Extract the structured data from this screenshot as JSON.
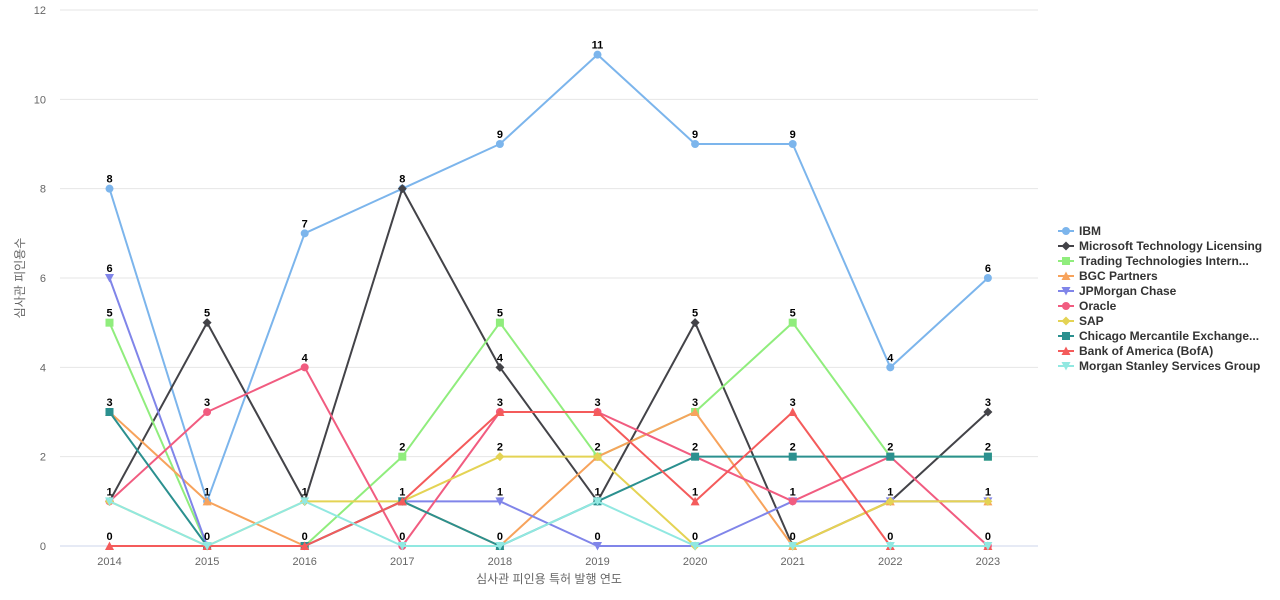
{
  "chart_data": {
    "type": "line",
    "title": "",
    "xlabel": "심사관 피인용 특허 발행 연도",
    "ylabel": "심사관 피인용수",
    "categories": [
      "2014",
      "2015",
      "2016",
      "2017",
      "2018",
      "2019",
      "2020",
      "2021",
      "2022",
      "2023"
    ],
    "ylim": [
      0,
      12
    ],
    "yticks": [
      0,
      2,
      4,
      6,
      8,
      10,
      12
    ],
    "grid": true,
    "legend_position": "right",
    "series": [
      {
        "name": "IBM",
        "color": "#7cb5ec",
        "marker": "circle",
        "values": [
          8,
          1,
          7,
          8,
          9,
          11,
          9,
          9,
          4,
          6
        ]
      },
      {
        "name": "Microsoft Technology Licensing",
        "color": "#434348",
        "marker": "diamond",
        "values": [
          1,
          5,
          1,
          8,
          4,
          1,
          5,
          0,
          1,
          3
        ]
      },
      {
        "name": "Trading Technologies Intern...",
        "color": "#90ed7d",
        "marker": "square",
        "values": [
          5,
          0,
          0,
          2,
          5,
          2,
          3,
          5,
          2,
          2
        ]
      },
      {
        "name": "BGC Partners",
        "color": "#f7a35c",
        "marker": "triangle",
        "values": [
          3,
          1,
          0,
          1,
          0,
          2,
          3,
          0,
          1,
          1
        ]
      },
      {
        "name": "JPMorgan Chase",
        "color": "#8085e9",
        "marker": "triangle-down",
        "values": [
          6,
          0,
          0,
          1,
          1,
          0,
          0,
          1,
          1,
          1
        ]
      },
      {
        "name": "Oracle",
        "color": "#f15c80",
        "marker": "circle",
        "values": [
          1,
          3,
          4,
          0,
          3,
          3,
          2,
          1,
          2,
          0
        ]
      },
      {
        "name": "SAP",
        "color": "#e4d354",
        "marker": "diamond",
        "values": [
          1,
          0,
          1,
          1,
          2,
          2,
          0,
          0,
          1,
          1
        ]
      },
      {
        "name": "Chicago Mercantile Exchange...",
        "color": "#2b908f",
        "marker": "square",
        "values": [
          3,
          0,
          0,
          1,
          0,
          1,
          2,
          2,
          2,
          2
        ]
      },
      {
        "name": "Bank of America (BofA)",
        "color": "#f45b5b",
        "marker": "triangle",
        "values": [
          0,
          0,
          0,
          1,
          3,
          3,
          1,
          3,
          0,
          0
        ]
      },
      {
        "name": "Morgan Stanley Services Group",
        "color": "#91e8e1",
        "marker": "triangle-down",
        "values": [
          1,
          0,
          1,
          0,
          0,
          1,
          0,
          0,
          0,
          0
        ]
      }
    ],
    "data_labels_source": "IBM"
  }
}
